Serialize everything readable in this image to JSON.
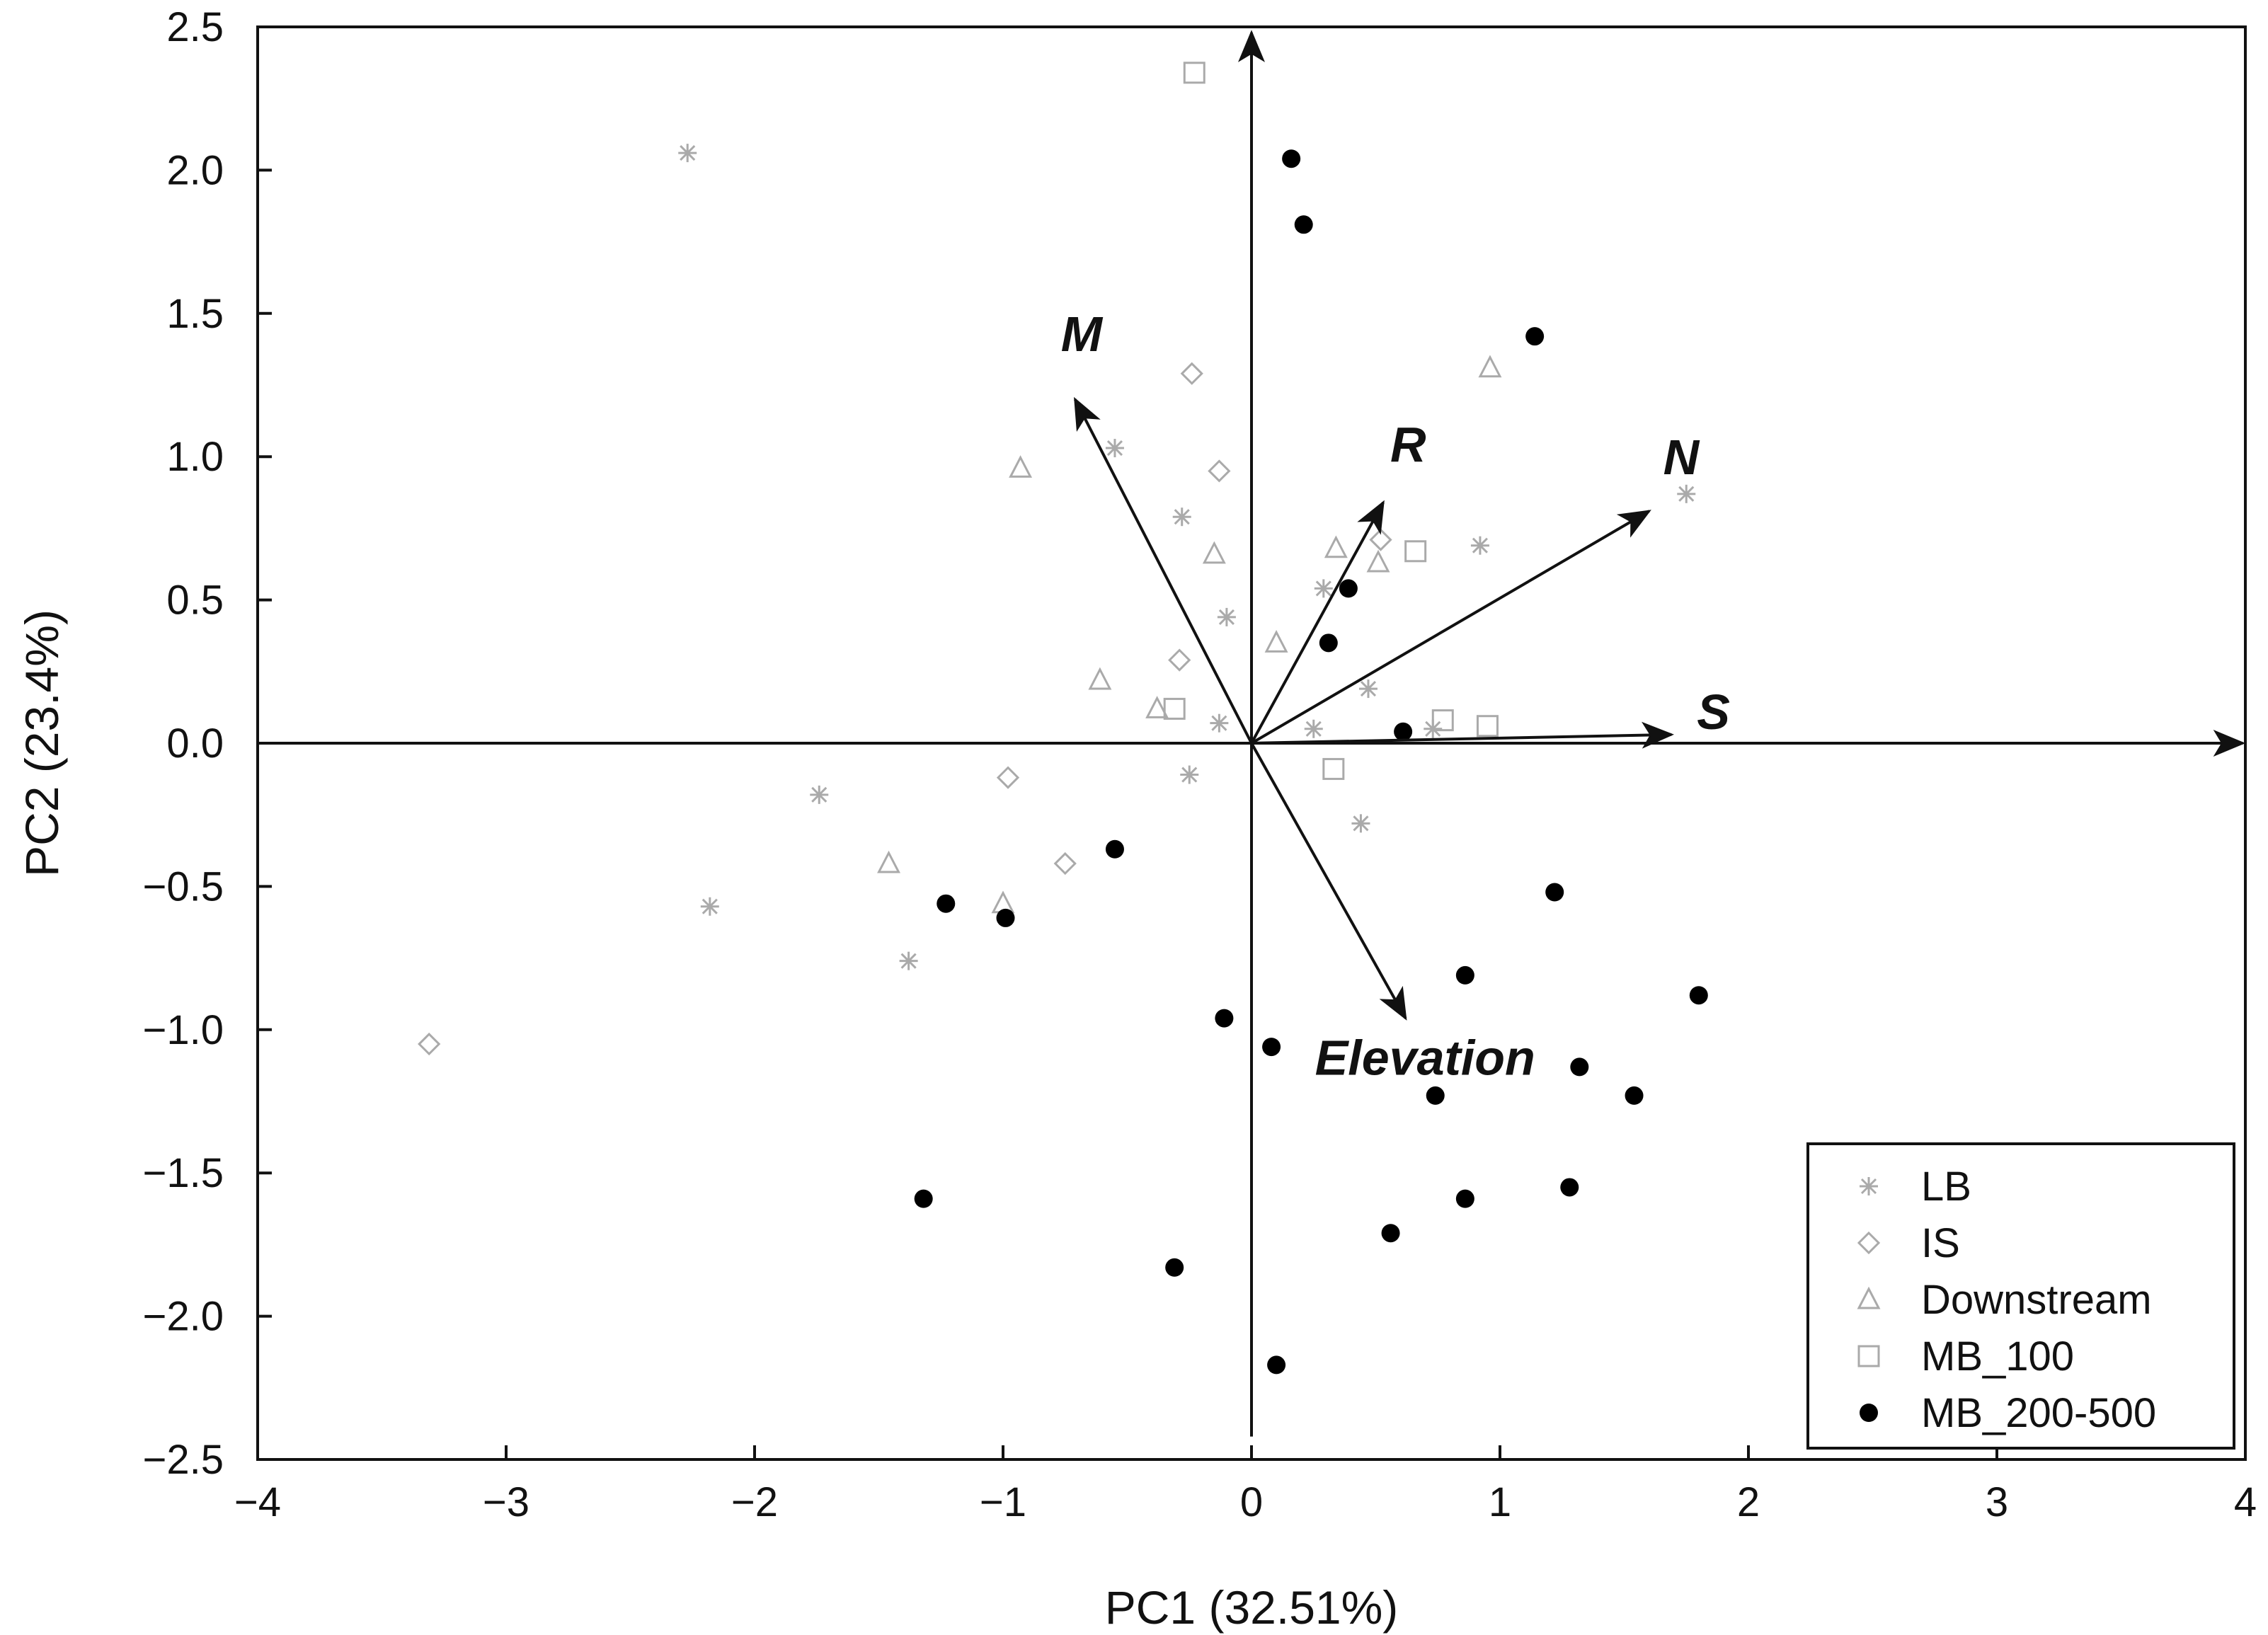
{
  "chart_data": {
    "type": "scatter",
    "title": "",
    "xlabel": "PC1 (32.51%)",
    "ylabel": "PC2 (23.4%)",
    "xlim": [
      -4,
      4
    ],
    "ylim": [
      -2.5,
      2.5
    ],
    "xticks": [
      -4,
      -3,
      -2,
      -1,
      0,
      1,
      2,
      3,
      4
    ],
    "xtick_labels": [
      "−4",
      "−3",
      "−2",
      "−1",
      "0",
      "1",
      "2",
      "3",
      "4"
    ],
    "yticks": [
      2.5,
      2.0,
      1.5,
      1.0,
      0.5,
      0.0,
      -0.5,
      -1.0,
      -1.5,
      -2.0,
      -2.5
    ],
    "ytick_labels": [
      "2.5",
      "2.0",
      "1.5",
      "1.0",
      "0.5",
      "0.0",
      "−0.5",
      "−1.0",
      "−1.5",
      "−2.0",
      "−2.5"
    ],
    "grid": false,
    "legend_position": "bottom-right",
    "series": [
      {
        "name": "LB",
        "marker": "asterisk",
        "color": "#aaaaaa",
        "points": [
          [
            -2.27,
            2.06
          ],
          [
            -0.55,
            1.03
          ],
          [
            -0.28,
            0.79
          ],
          [
            -0.1,
            0.44
          ],
          [
            -0.13,
            0.07
          ],
          [
            0.29,
            0.54
          ],
          [
            0.25,
            0.05
          ],
          [
            0.47,
            0.19
          ],
          [
            0.73,
            0.05
          ],
          [
            0.92,
            0.69
          ],
          [
            1.75,
            0.87
          ],
          [
            -1.74,
            -0.18
          ],
          [
            -0.25,
            -0.11
          ],
          [
            0.44,
            -0.28
          ],
          [
            -2.18,
            -0.57
          ],
          [
            -1.38,
            -0.76
          ]
        ]
      },
      {
        "name": "IS",
        "marker": "diamond",
        "color": "#aaaaaa",
        "points": [
          [
            -0.24,
            1.29
          ],
          [
            -0.13,
            0.95
          ],
          [
            -0.29,
            0.29
          ],
          [
            0.52,
            0.71
          ],
          [
            -0.98,
            -0.12
          ],
          [
            -0.75,
            -0.42
          ],
          [
            -3.31,
            -1.05
          ]
        ]
      },
      {
        "name": "Downstream",
        "marker": "triangle",
        "color": "#aaaaaa",
        "points": [
          [
            0.96,
            1.31
          ],
          [
            -0.93,
            0.96
          ],
          [
            -0.15,
            0.66
          ],
          [
            0.34,
            0.68
          ],
          [
            0.51,
            0.63
          ],
          [
            0.1,
            0.35
          ],
          [
            -0.61,
            0.22
          ],
          [
            -0.38,
            0.12
          ],
          [
            -1.46,
            -0.42
          ],
          [
            -1.0,
            -0.56
          ]
        ]
      },
      {
        "name": "MB_100",
        "marker": "square",
        "color": "#aaaaaa",
        "points": [
          [
            -0.23,
            2.34
          ],
          [
            0.66,
            0.67
          ],
          [
            -0.31,
            0.12
          ],
          [
            0.77,
            0.08
          ],
          [
            0.95,
            0.06
          ],
          [
            0.33,
            -0.09
          ]
        ]
      },
      {
        "name": "MB_200-500",
        "marker": "circle",
        "color": "#000000",
        "points": [
          [
            0.16,
            2.04
          ],
          [
            0.21,
            1.81
          ],
          [
            1.14,
            1.42
          ],
          [
            0.39,
            0.54
          ],
          [
            0.31,
            0.35
          ],
          [
            0.61,
            0.04
          ],
          [
            -0.55,
            -0.37
          ],
          [
            -1.23,
            -0.56
          ],
          [
            -0.99,
            -0.61
          ],
          [
            1.22,
            -0.52
          ],
          [
            0.86,
            -0.81
          ],
          [
            1.8,
            -0.88
          ],
          [
            -0.11,
            -0.96
          ],
          [
            0.08,
            -1.06
          ],
          [
            1.32,
            -1.13
          ],
          [
            0.74,
            -1.23
          ],
          [
            1.54,
            -1.23
          ],
          [
            -1.32,
            -1.59
          ],
          [
            0.86,
            -1.59
          ],
          [
            1.28,
            -1.55
          ],
          [
            0.56,
            -1.71
          ],
          [
            -0.31,
            -1.83
          ],
          [
            0.1,
            -2.17
          ]
        ]
      }
    ],
    "vectors": [
      {
        "label": "M",
        "x": -0.71,
        "y": 1.2
      },
      {
        "label": "R",
        "x": 0.53,
        "y": 0.84
      },
      {
        "label": "N",
        "x": 1.6,
        "y": 0.81
      },
      {
        "label": "S",
        "x": 1.69,
        "y": 0.03
      },
      {
        "label": "Elevation",
        "x": 0.62,
        "y": -0.96
      }
    ]
  }
}
